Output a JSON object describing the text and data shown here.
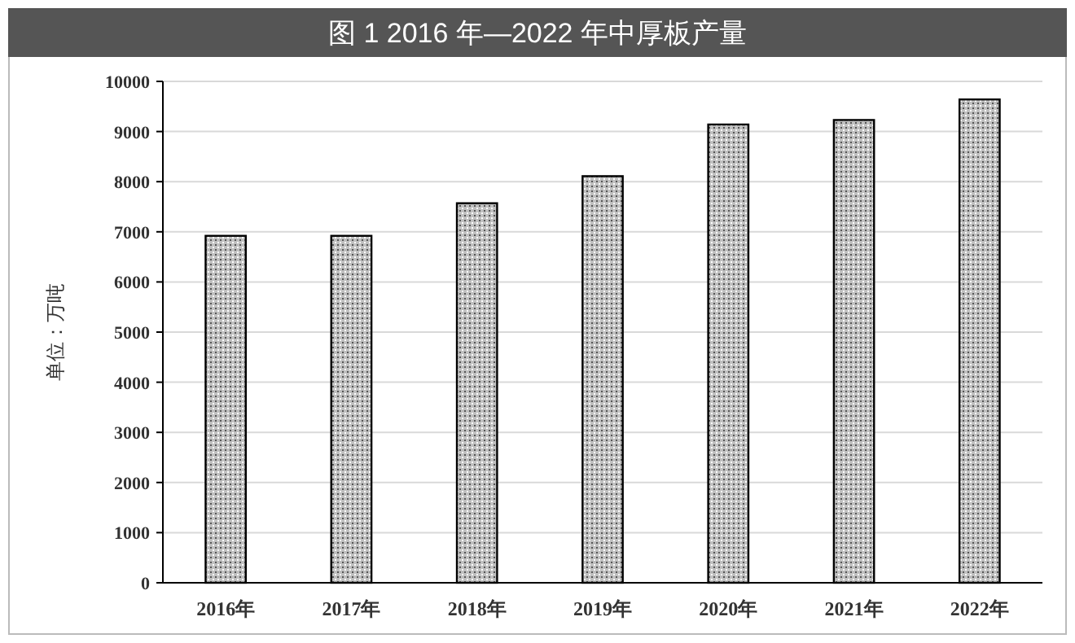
{
  "chart_data": {
    "type": "bar",
    "title": "图 1 2016 年—2022 年中厚板产量",
    "ylabel": "单位：万吨",
    "categories": [
      "2016年",
      "2017年",
      "2018年",
      "2019年",
      "2020年",
      "2021年",
      "2022年"
    ],
    "values": [
      6920,
      6920,
      7570,
      8110,
      9140,
      9230,
      9640
    ],
    "color": "#c0c0c0",
    "ylim": [
      0,
      10000
    ],
    "yticks": [
      0,
      1000,
      2000,
      3000,
      4000,
      5000,
      6000,
      7000,
      8000,
      9000,
      10000
    ],
    "grid": "y"
  }
}
